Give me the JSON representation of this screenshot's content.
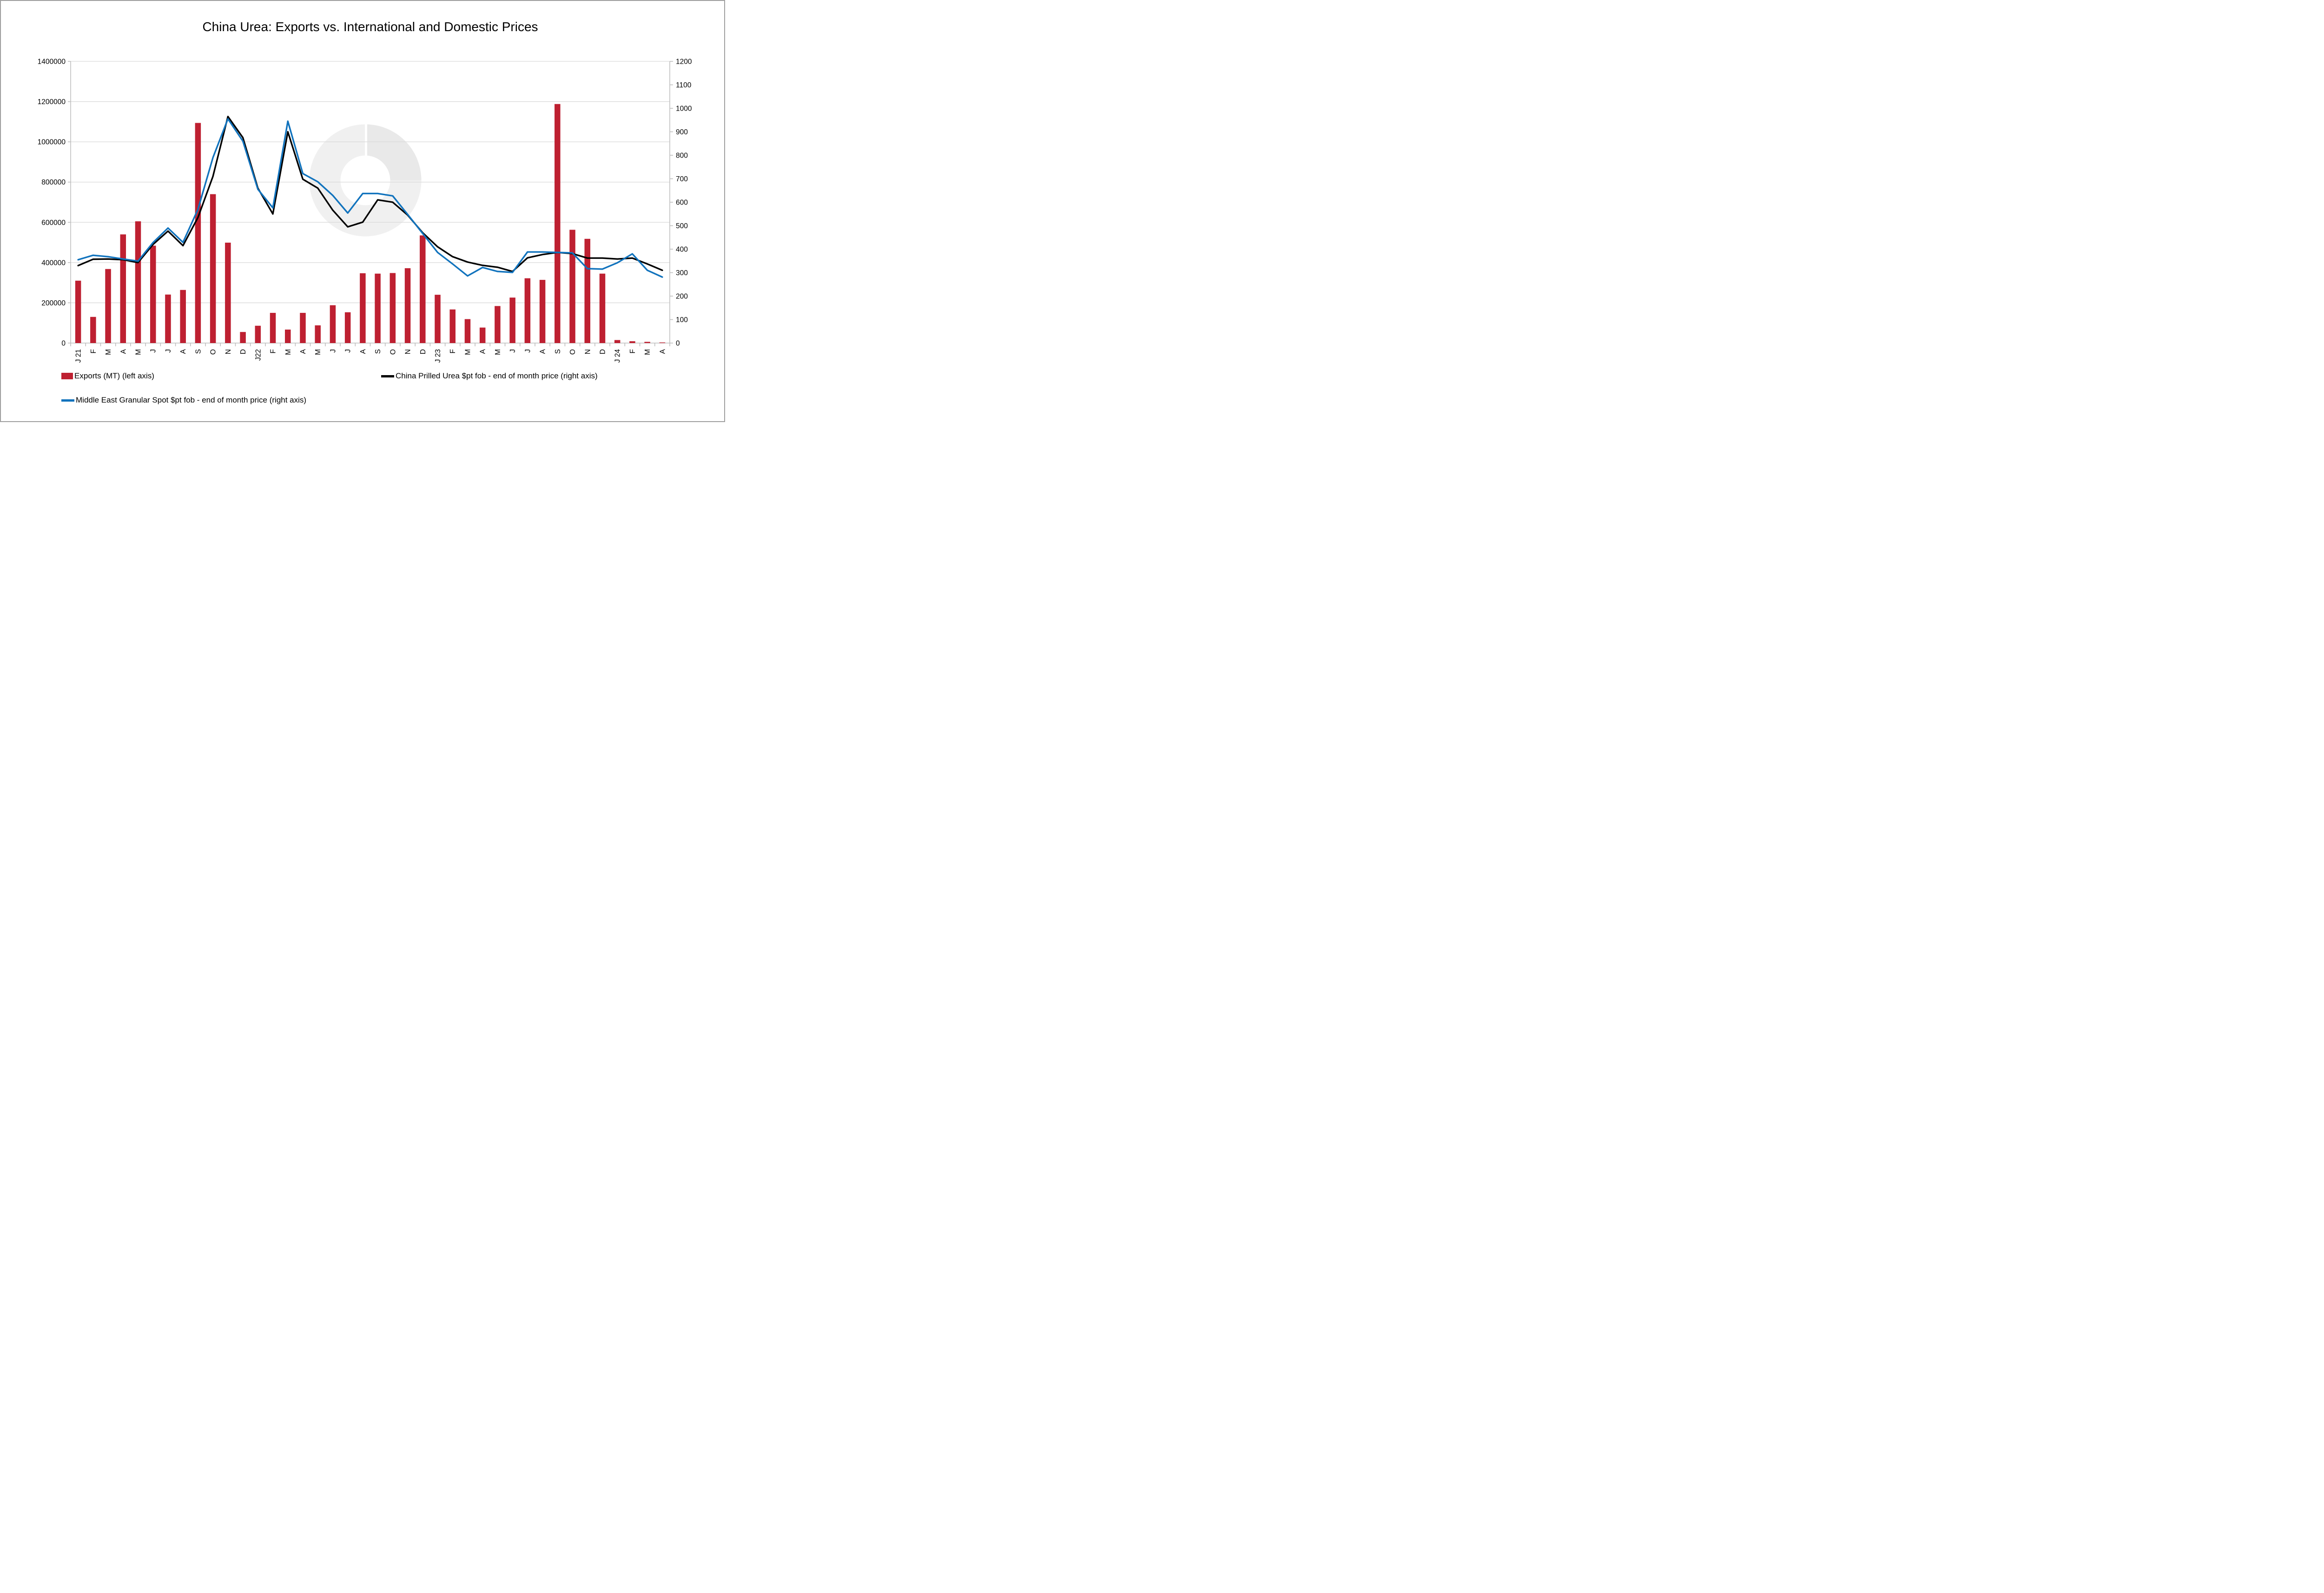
{
  "title": "China Urea: Exports vs. International and Domestic Prices",
  "colors": {
    "bar_red": "#BE2031",
    "prilled_black": "#000000",
    "granular_blue": "#1173BD",
    "gridline": "#D9D9D9",
    "axis_line": "#BFBFBF",
    "tick_text": "#000000",
    "watermark_ring": "#F0F0F0",
    "watermark_quadrant": "#E9E9E9"
  },
  "chart_data": {
    "type": "bar+line combo",
    "title": "China Urea: Exports vs. International and Domestic Prices",
    "categories": [
      "J 21",
      "F",
      "M",
      "A",
      "M",
      "J",
      "J",
      "A",
      "S",
      "O",
      "N",
      "D",
      "J22",
      "F",
      "M",
      "A",
      "M",
      "J",
      "J",
      "A",
      "S",
      "O",
      "N",
      "D",
      "J 23",
      "F",
      "M",
      "A",
      "M",
      "J",
      "J",
      "A",
      "S",
      "O",
      "N",
      "D",
      "J 24",
      "F",
      "M",
      "A"
    ],
    "series": [
      {
        "name": "Exports (MT) (left axis)",
        "type": "bar",
        "axis": "left",
        "color": "#BE2031",
        "values": [
          310000,
          130000,
          368000,
          540000,
          605000,
          484000,
          241000,
          264000,
          1094000,
          740000,
          499000,
          55000,
          86000,
          150000,
          67000,
          150000,
          88000,
          188000,
          153000,
          347000,
          345000,
          348000,
          372000,
          535000,
          240000,
          167000,
          119000,
          77000,
          184000,
          226000,
          322000,
          314000,
          1188000,
          563000,
          518000,
          345000,
          15000,
          9000,
          6000,
          3000
        ]
      },
      {
        "name": "China Prilled Urea $pt fob - end of month price (right axis)",
        "type": "line",
        "axis": "right",
        "color": "#000000",
        "values": [
          330,
          357,
          358,
          355,
          343,
          420,
          477,
          415,
          535,
          710,
          965,
          875,
          660,
          550,
          900,
          698,
          660,
          566,
          495,
          515,
          610,
          600,
          545,
          470,
          410,
          368,
          345,
          331,
          323,
          305,
          363,
          377,
          386,
          381,
          362,
          362,
          358,
          362,
          337,
          310
        ]
      },
      {
        "name": "Middle East Granular Spot $pt fob - end of month price (right axis)",
        "type": "line",
        "axis": "right",
        "color": "#1173BD",
        "values": [
          355,
          374,
          368,
          358,
          349,
          428,
          490,
          429,
          570,
          790,
          955,
          860,
          655,
          576,
          945,
          722,
          687,
          629,
          554,
          637,
          637,
          627,
          548,
          467,
          386,
          337,
          286,
          322,
          305,
          301,
          388,
          388,
          386,
          384,
          317,
          315,
          342,
          380,
          310,
          281
        ]
      }
    ],
    "left_axis": {
      "min": 0,
      "max": 1400000,
      "step": 200000
    },
    "right_axis": {
      "min": 0,
      "max": 1200,
      "step": 100
    },
    "grid": true,
    "legend_position": "bottom"
  }
}
